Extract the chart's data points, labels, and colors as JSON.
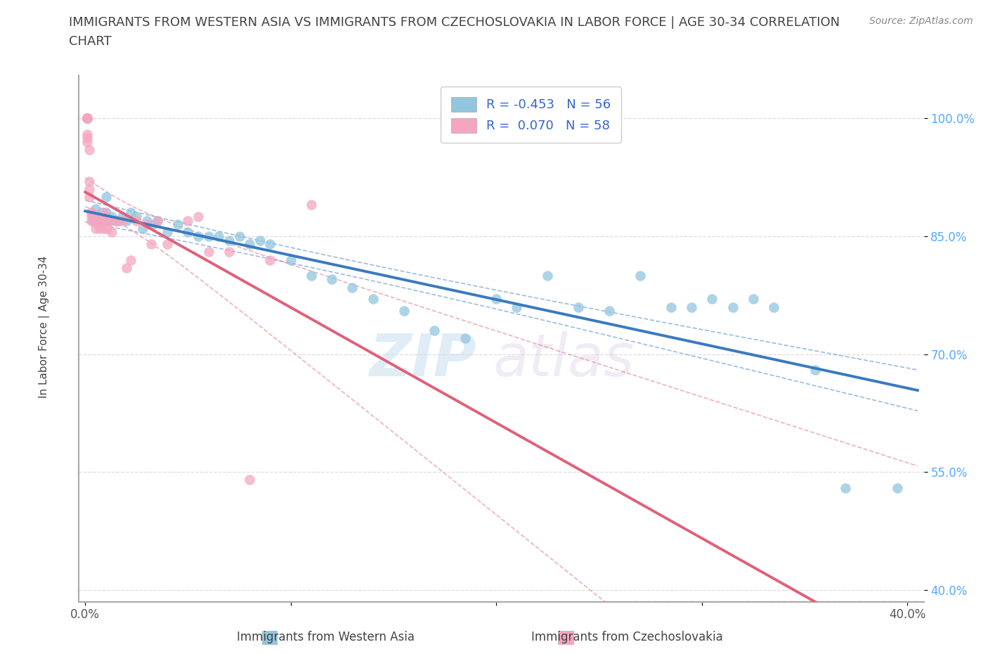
{
  "title": "IMMIGRANTS FROM WESTERN ASIA VS IMMIGRANTS FROM CZECHOSLOVAKIA IN LABOR FORCE | AGE 30-34 CORRELATION\nCHART",
  "source": "Source: ZipAtlas.com",
  "ylabel": "In Labor Force | Age 30-34",
  "R_blue": -0.453,
  "N_blue": 56,
  "R_pink": 0.07,
  "N_pink": 58,
  "legend_labels": [
    "Immigrants from Western Asia",
    "Immigrants from Czechoslovakia"
  ],
  "blue_color": "#92c5de",
  "pink_color": "#f4a6c0",
  "blue_line_color": "#3a7abf",
  "pink_line_color": "#e0607a",
  "watermark_zip": "ZIP",
  "watermark_atlas": "atlas",
  "background_color": "#ffffff",
  "blue_x": [
    0.005,
    0.005,
    0.006,
    0.007,
    0.007,
    0.008,
    0.009,
    0.01,
    0.01,
    0.011,
    0.012,
    0.013,
    0.015,
    0.016,
    0.018,
    0.02,
    0.022,
    0.025,
    0.028,
    0.03,
    0.033,
    0.035,
    0.04,
    0.045,
    0.05,
    0.055,
    0.06,
    0.065,
    0.07,
    0.075,
    0.08,
    0.085,
    0.09,
    0.1,
    0.11,
    0.12,
    0.13,
    0.14,
    0.155,
    0.17,
    0.185,
    0.2,
    0.21,
    0.225,
    0.24,
    0.255,
    0.27,
    0.285,
    0.295,
    0.305,
    0.315,
    0.325,
    0.335,
    0.355,
    0.37,
    0.395
  ],
  "blue_y": [
    0.885,
    0.875,
    0.87,
    0.87,
    0.875,
    0.88,
    0.87,
    0.88,
    0.9,
    0.87,
    0.87,
    0.875,
    0.87,
    0.87,
    0.875,
    0.87,
    0.88,
    0.875,
    0.86,
    0.87,
    0.865,
    0.87,
    0.855,
    0.865,
    0.855,
    0.85,
    0.85,
    0.85,
    0.845,
    0.85,
    0.84,
    0.845,
    0.84,
    0.82,
    0.8,
    0.795,
    0.785,
    0.77,
    0.755,
    0.73,
    0.72,
    0.77,
    0.76,
    0.8,
    0.76,
    0.755,
    0.8,
    0.76,
    0.76,
    0.77,
    0.76,
    0.77,
    0.76,
    0.68,
    0.53,
    0.53
  ],
  "pink_x": [
    0.001,
    0.001,
    0.001,
    0.001,
    0.001,
    0.001,
    0.001,
    0.001,
    0.001,
    0.002,
    0.002,
    0.002,
    0.002,
    0.003,
    0.003,
    0.003,
    0.003,
    0.004,
    0.004,
    0.004,
    0.004,
    0.005,
    0.005,
    0.005,
    0.005,
    0.005,
    0.006,
    0.006,
    0.006,
    0.007,
    0.007,
    0.007,
    0.008,
    0.008,
    0.009,
    0.009,
    0.01,
    0.01,
    0.011,
    0.012,
    0.013,
    0.015,
    0.016,
    0.018,
    0.02,
    0.022,
    0.025,
    0.03,
    0.032,
    0.035,
    0.04,
    0.05,
    0.055,
    0.06,
    0.07,
    0.08,
    0.09,
    0.11
  ],
  "pink_y": [
    1.0,
    1.0,
    1.0,
    1.0,
    1.0,
    1.0,
    0.98,
    0.975,
    0.97,
    0.96,
    0.92,
    0.91,
    0.9,
    0.88,
    0.88,
    0.87,
    0.875,
    0.875,
    0.87,
    0.87,
    0.875,
    0.87,
    0.87,
    0.87,
    0.875,
    0.86,
    0.87,
    0.87,
    0.865,
    0.865,
    0.86,
    0.87,
    0.87,
    0.875,
    0.86,
    0.88,
    0.87,
    0.87,
    0.86,
    0.87,
    0.855,
    0.87,
    0.87,
    0.87,
    0.81,
    0.82,
    0.87,
    0.865,
    0.84,
    0.87,
    0.84,
    0.87,
    0.875,
    0.83,
    0.83,
    0.54,
    0.82,
    0.89
  ],
  "xlim": [
    -0.003,
    0.408
  ],
  "ylim": [
    0.385,
    1.055
  ],
  "x_ticks": [
    0.0,
    0.1,
    0.2,
    0.3,
    0.4
  ],
  "x_tick_labels": [
    "0.0%",
    "",
    "",
    "",
    "40.0%"
  ],
  "y_ticks": [
    0.4,
    0.55,
    0.7,
    0.85,
    1.0
  ],
  "y_tick_labels": [
    "40.0%",
    "55.0%",
    "70.0%",
    "85.0%",
    "100.0%"
  ],
  "tick_color_y": "#55aaff",
  "tick_color_x": "#555555",
  "title_fontsize": 13,
  "tick_fontsize": 12,
  "legend_fontsize": 13,
  "source_fontsize": 10,
  "ylabel_fontsize": 11
}
